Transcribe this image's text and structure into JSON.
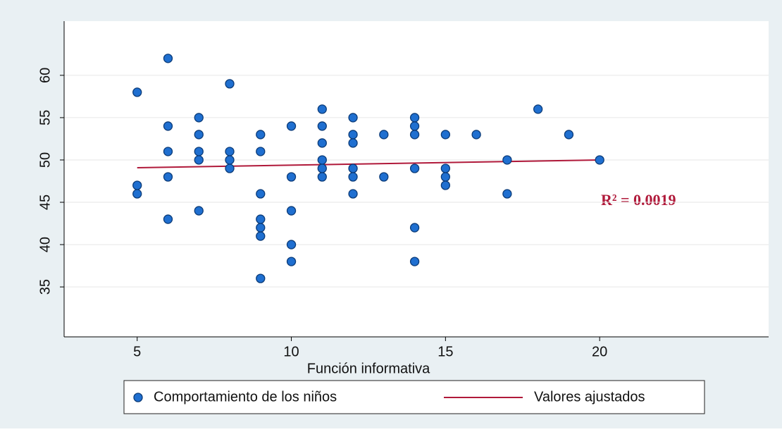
{
  "chart_data": {
    "type": "scatter",
    "xlabel": "Función informativa",
    "annotation": "R² = 0.0019",
    "xlim": [
      2.63,
      25.48
    ],
    "ylim": [
      29.1,
      66.4
    ],
    "xticks": [
      5,
      10,
      15,
      20
    ],
    "yticks": [
      35,
      40,
      45,
      50,
      55,
      60
    ],
    "grid": true,
    "legend": "bottom",
    "series": [
      {
        "name": "Comportamiento de los niños",
        "type": "scatter",
        "color": "#1f6fd0",
        "x": [
          5,
          5,
          5,
          6,
          6,
          6,
          6,
          6,
          7,
          7,
          7,
          7,
          7,
          8,
          8,
          8,
          8,
          9,
          9,
          9,
          9,
          9,
          9,
          9,
          10,
          10,
          10,
          10,
          10,
          11,
          11,
          11,
          11,
          11,
          11,
          12,
          12,
          12,
          12,
          12,
          12,
          13,
          13,
          14,
          14,
          14,
          14,
          14,
          14,
          15,
          15,
          15,
          15,
          16,
          17,
          17,
          18,
          19,
          20
        ],
        "values": [
          58,
          47,
          46,
          62,
          54,
          51,
          48,
          43,
          55,
          53,
          51,
          50,
          44,
          59,
          51,
          50,
          49,
          53,
          51,
          46,
          43,
          42,
          41,
          36,
          54,
          48,
          44,
          40,
          38,
          56,
          54,
          52,
          50,
          49,
          48,
          55,
          53,
          52,
          49,
          48,
          46,
          53,
          48,
          55,
          54,
          53,
          49,
          42,
          38,
          53,
          49,
          48,
          47,
          53,
          50,
          46,
          56,
          53,
          50
        ]
      },
      {
        "name": "Valores ajustados",
        "type": "line",
        "color": "#b0193a",
        "x": [
          5,
          20
        ],
        "values": [
          49.08,
          50
        ]
      }
    ]
  }
}
